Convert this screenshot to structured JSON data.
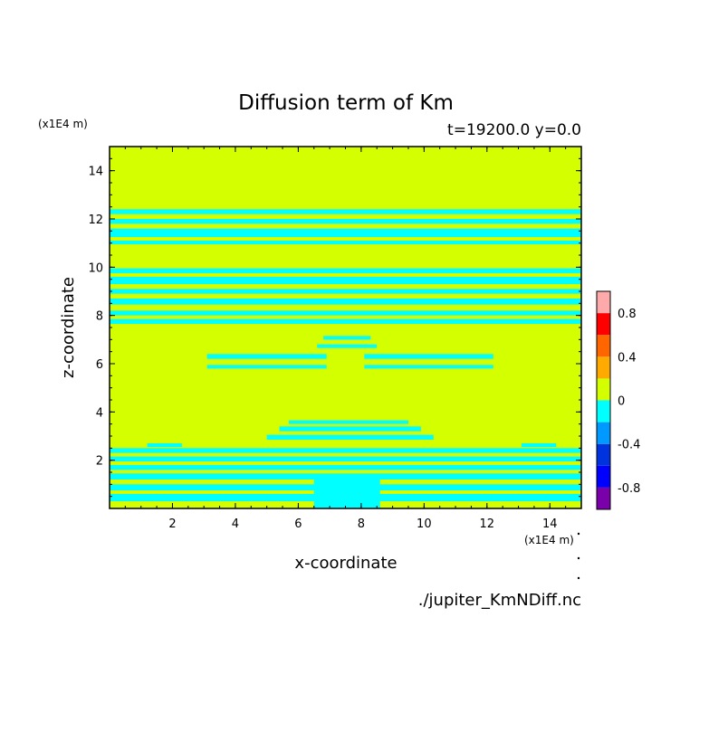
{
  "chart_data": {
    "type": "heatmap",
    "title": "Diffusion term of Km",
    "subtitle": "t=19200.0 y=0.0",
    "xlabel": "x-coordinate",
    "ylabel": "z-coordinate",
    "x_unit": "(x1E4 m)",
    "y_unit": "(x1E4 m)",
    "source": "./jupiter_KmNDiff.nc",
    "xlim": [
      0,
      15
    ],
    "ylim": [
      0,
      15
    ],
    "x_ticks": [
      2,
      4,
      6,
      8,
      10,
      12,
      14
    ],
    "y_ticks": [
      2,
      4,
      6,
      8,
      10,
      12,
      14
    ],
    "background_level": "0 to 0.2",
    "background_color": "#d4ff00",
    "negative_band_color": "#00ffff",
    "colorbar": {
      "levels": [
        -1.0,
        -0.8,
        -0.6,
        -0.4,
        -0.2,
        0,
        0.2,
        0.4,
        0.6,
        0.8,
        1.0
      ],
      "colors": [
        "#7a00aa",
        "#0000ff",
        "#0033dd",
        "#0099ff",
        "#00ffff",
        "#d4ff00",
        "#ffaa00",
        "#ff6600",
        "#ff0000",
        "#ffaaaa"
      ],
      "labels": [
        "-0.8",
        "-0.4",
        "0",
        "0.4",
        "0.8"
      ],
      "label_values": [
        -0.8,
        -0.4,
        0,
        0.4,
        0.8
      ]
    },
    "negative_bands": [
      {
        "z0": 12.2,
        "z1": 12.4,
        "x0": 0,
        "x1": 15
      },
      {
        "z0": 11.8,
        "z1": 12.0,
        "x0": 0,
        "x1": 15
      },
      {
        "z0": 11.25,
        "z1": 11.6,
        "x0": 0,
        "x1": 15
      },
      {
        "z0": 10.95,
        "z1": 11.1,
        "x0": 0,
        "x1": 15
      },
      {
        "z0": 9.75,
        "z1": 9.95,
        "x0": 0,
        "x1": 15
      },
      {
        "z0": 9.3,
        "z1": 9.6,
        "x0": 0,
        "x1": 15
      },
      {
        "z0": 8.9,
        "z1": 9.1,
        "x0": 0,
        "x1": 15
      },
      {
        "z0": 8.45,
        "z1": 8.7,
        "x0": 0,
        "x1": 15
      },
      {
        "z0": 8.0,
        "z1": 8.2,
        "x0": 0,
        "x1": 15
      },
      {
        "z0": 7.65,
        "z1": 7.85,
        "x0": 0,
        "x1": 15
      },
      {
        "z0": 7.0,
        "z1": 7.15,
        "x0": 6.8,
        "x1": 8.3
      },
      {
        "z0": 6.65,
        "z1": 6.8,
        "x0": 6.6,
        "x1": 8.5
      },
      {
        "z0": 6.2,
        "z1": 6.4,
        "x0": 3.1,
        "x1": 6.9
      },
      {
        "z0": 5.8,
        "z1": 5.95,
        "x0": 3.1,
        "x1": 6.9
      },
      {
        "z0": 6.2,
        "z1": 6.4,
        "x0": 8.1,
        "x1": 12.2
      },
      {
        "z0": 5.8,
        "z1": 5.95,
        "x0": 8.1,
        "x1": 12.2
      },
      {
        "z0": 3.5,
        "z1": 3.65,
        "x0": 5.7,
        "x1": 9.5
      },
      {
        "z0": 3.2,
        "z1": 3.4,
        "x0": 5.4,
        "x1": 9.9
      },
      {
        "z0": 2.85,
        "z1": 3.05,
        "x0": 5.0,
        "x1": 10.3
      },
      {
        "z0": 2.55,
        "z1": 2.7,
        "x0": 1.2,
        "x1": 2.3
      },
      {
        "z0": 2.55,
        "z1": 2.7,
        "x0": 13.1,
        "x1": 14.2
      },
      {
        "z0": 2.3,
        "z1": 2.5,
        "x0": 0,
        "x1": 15
      },
      {
        "z0": 1.95,
        "z1": 2.15,
        "x0": 0,
        "x1": 15
      },
      {
        "z0": 1.6,
        "z1": 1.8,
        "x0": 0,
        "x1": 15
      },
      {
        "z0": 1.2,
        "z1": 1.45,
        "x0": 0,
        "x1": 15
      },
      {
        "z0": 0.75,
        "z1": 1.0,
        "x0": 0,
        "x1": 15
      },
      {
        "z0": 0.3,
        "z1": 0.6,
        "x0": 0,
        "x1": 15
      },
      {
        "z0": 0.0,
        "z1": 1.3,
        "x0": 6.5,
        "x1": 8.6
      }
    ]
  }
}
